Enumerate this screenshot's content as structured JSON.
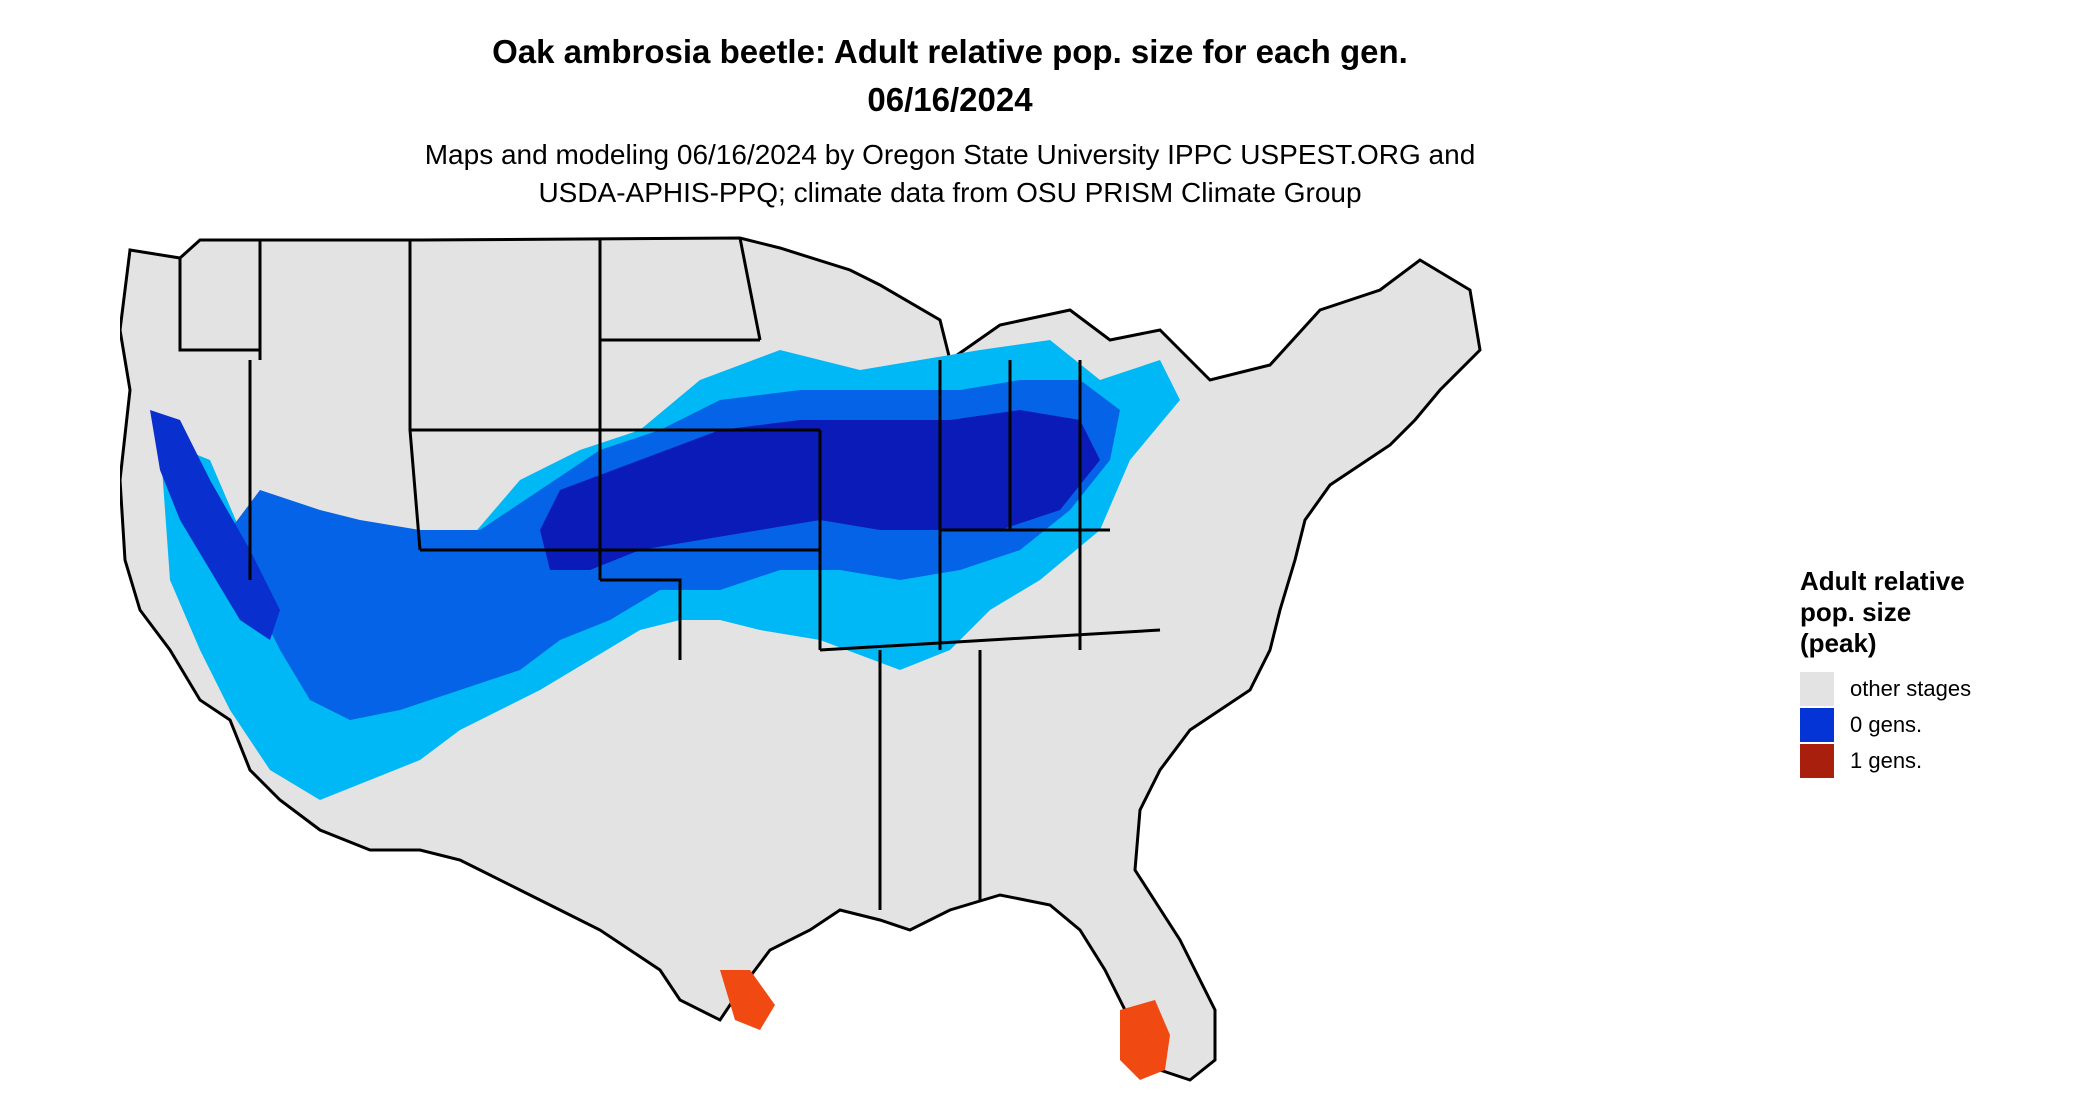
{
  "header": {
    "title_line1": "Oak ambrosia beetle: Adult relative pop. size for each gen.",
    "title_line2": "06/16/2024",
    "subtitle_line1": "Maps and modeling 06/16/2024 by Oregon State University IPPC USPEST.ORG and",
    "subtitle_line2": "USDA-APHIS-PPQ; climate data from OSU PRISM Climate Group"
  },
  "legend": {
    "title_line1": "Adult relative",
    "title_line2": "pop. size",
    "title_line3": "(peak)",
    "items": [
      {
        "label": "other stages",
        "color": "#e3e3e3"
      },
      {
        "label": "0 gens.",
        "color": "#0434d6"
      },
      {
        "label": "1 gens.",
        "color": "#a8200d"
      }
    ]
  },
  "map_colors": {
    "land": "#e3e3e3",
    "border": "#000000",
    "light_blue": "#00b8f5",
    "mid_blue": "#0563e8",
    "dark_blue": "#0a2fcf",
    "deep_blue": "#0a1bb8",
    "red_orange": "#f04a12",
    "dark_red": "#a8200d"
  }
}
